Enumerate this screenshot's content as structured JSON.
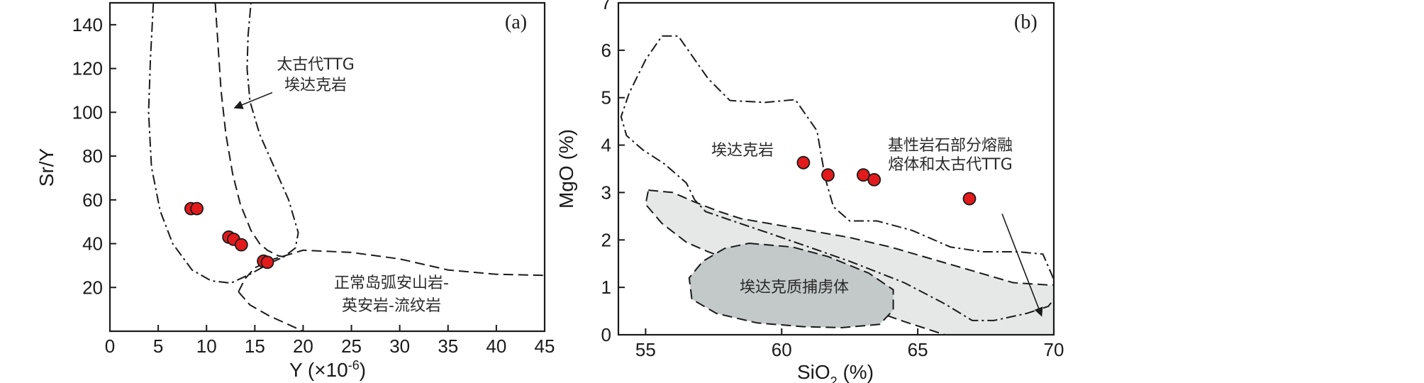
{
  "colors": {
    "point_fill": "#e31a1c",
    "point_stroke": "#1a1a1a",
    "light_field": "#e6e8e8",
    "dark_field": "#c3c8c8",
    "line": "#1a1a1a"
  },
  "chart_data": [
    {
      "type": "scatter",
      "panel_label": "(a)",
      "xlabel_prefix": "Y (",
      "xlabel_unit": "×10",
      "xlabel_exp": "-6",
      "xlabel_suffix": ")",
      "ylabel": "Sr/Y",
      "xlim": [
        0,
        45
      ],
      "ylim": [
        0,
        150
      ],
      "xticks": [
        0,
        5,
        10,
        15,
        20,
        25,
        30,
        35,
        40,
        45
      ],
      "yticks": [
        20,
        40,
        60,
        80,
        100,
        120,
        140
      ],
      "points": [
        {
          "x": 8.4,
          "y": 56
        },
        {
          "x": 9.0,
          "y": 56
        },
        {
          "x": 12.3,
          "y": 43
        },
        {
          "x": 12.8,
          "y": 42
        },
        {
          "x": 13.6,
          "y": 39.5
        },
        {
          "x": 15.9,
          "y": 32
        },
        {
          "x": 16.3,
          "y": 31.5
        }
      ],
      "regions": [
        {
          "name": "adakite",
          "label_lines": [
            "太古代TTG",
            "埃达克岩"
          ],
          "style": "dashdot",
          "points": [
            [
              4.5,
              150
            ],
            [
              4.2,
              125
            ],
            [
              4.0,
              100
            ],
            [
              4.3,
              75
            ],
            [
              5.2,
              55
            ],
            [
              6.5,
              40
            ],
            [
              8.5,
              28
            ],
            [
              10.5,
              23
            ],
            [
              12.5,
              22
            ],
            [
              14.5,
              26
            ],
            [
              16.5,
              31
            ],
            [
              18,
              34
            ],
            [
              19.2,
              38
            ],
            [
              19.5,
              45
            ],
            [
              18.5,
              60
            ],
            [
              17,
              75
            ],
            [
              15.5,
              90
            ],
            [
              14.5,
              105
            ],
            [
              14.2,
              120
            ],
            [
              14.3,
              135
            ],
            [
              14.6,
              150
            ]
          ]
        },
        {
          "name": "normal-arc",
          "label_lines": [
            "正常岛弧安山岩-",
            "英安岩-流纹岩"
          ],
          "style": "dash",
          "points": [
            [
              13.3,
              18
            ],
            [
              14.0,
              24
            ],
            [
              15.0,
              29
            ],
            [
              17,
              33
            ],
            [
              20,
              37
            ],
            [
              25,
              36
            ],
            [
              30,
              33
            ],
            [
              35,
              28
            ],
            [
              40,
              26
            ],
            [
              45,
              25.5
            ]
          ],
          "inner": [
            [
              13.3,
              18
            ],
            [
              14.5,
              12
            ],
            [
              16.5,
              7
            ],
            [
              18.5,
              3
            ],
            [
              20,
              0
            ]
          ]
        },
        {
          "name": "hook",
          "style": "dash",
          "points": [
            [
              10.9,
              150
            ],
            [
              11.2,
              130
            ],
            [
              11.5,
              110
            ],
            [
              12,
              90
            ],
            [
              12.7,
              72
            ],
            [
              13.5,
              58
            ],
            [
              14.6,
              46
            ],
            [
              15.5,
              40
            ],
            [
              16.3,
              37
            ],
            [
              17.4,
              34.5
            ],
            [
              18,
              34
            ]
          ]
        }
      ],
      "arrow": {
        "from": [
          16.8,
          109
        ],
        "to": [
          12.9,
          102
        ]
      }
    },
    {
      "type": "scatter",
      "panel_label": "(b)",
      "xlabel_prefix": "SiO",
      "xlabel_sub": "2",
      "xlabel_suffix": " (%)",
      "ylabel": "MgO (%)",
      "xlim": [
        54,
        70
      ],
      "ylim": [
        0,
        7
      ],
      "xticks": [
        55,
        60,
        65,
        70
      ],
      "yticks": [
        0,
        1,
        2,
        3,
        4,
        5,
        6,
        7
      ],
      "points": [
        {
          "x": 60.8,
          "y": 3.63
        },
        {
          "x": 61.7,
          "y": 3.37
        },
        {
          "x": 63.0,
          "y": 3.37
        },
        {
          "x": 63.4,
          "y": 3.27
        },
        {
          "x": 66.9,
          "y": 2.87
        }
      ],
      "regions": [
        {
          "name": "adakite-field",
          "label_lines": [
            "埃达克岩"
          ],
          "style": "dashdot",
          "points": [
            [
              55.6,
              6.3
            ],
            [
              56.2,
              6.3
            ],
            [
              57.3,
              5.4
            ],
            [
              58.1,
              4.94
            ],
            [
              59.4,
              4.9
            ],
            [
              60.5,
              4.96
            ],
            [
              61.3,
              4.3
            ],
            [
              61.6,
              3.3
            ],
            [
              61.9,
              2.7
            ],
            [
              62.5,
              2.4
            ],
            [
              63.5,
              2.4
            ],
            [
              64.8,
              2.2
            ],
            [
              66.2,
              1.85
            ],
            [
              67.4,
              1.75
            ],
            [
              68.7,
              1.75
            ],
            [
              69.6,
              1.7
            ],
            [
              70.2,
              0.9
            ],
            [
              69.8,
              0.6
            ],
            [
              69.0,
              0.45
            ],
            [
              67.8,
              0.3
            ],
            [
              67.0,
              0.3
            ],
            [
              66,
              0.65
            ],
            [
              64.5,
              1.1
            ],
            [
              62.5,
              1.55
            ],
            [
              61.0,
              1.85
            ],
            [
              59.5,
              2.15
            ],
            [
              58.2,
              2.4
            ],
            [
              57.2,
              2.6
            ],
            [
              56.8,
              2.85
            ],
            [
              56.5,
              3.2
            ],
            [
              55.7,
              3.6
            ],
            [
              54.9,
              3.9
            ],
            [
              54.3,
              4.2
            ],
            [
              54.1,
              4.6
            ],
            [
              54.4,
              5.1
            ],
            [
              55.0,
              5.8
            ],
            [
              55.6,
              6.3
            ]
          ]
        },
        {
          "name": "partial-melt-field",
          "label_lines": [
            "基性岩石部分熔融",
            "熔体和太古代TTG"
          ],
          "style": "dash",
          "points": [
            [
              55.1,
              3.05
            ],
            [
              56.0,
              3.0
            ],
            [
              56.8,
              2.8
            ],
            [
              57.7,
              2.6
            ],
            [
              58.5,
              2.45
            ],
            [
              59.5,
              2.35
            ],
            [
              61,
              2.2
            ],
            [
              62.5,
              2.05
            ],
            [
              64,
              1.85
            ],
            [
              65.5,
              1.6
            ],
            [
              67,
              1.35
            ],
            [
              68.5,
              1.1
            ],
            [
              69.8,
              1.05
            ],
            [
              70.5,
              1.05
            ],
            [
              70.5,
              0
            ],
            [
              66,
              0
            ],
            [
              64.5,
              0.28
            ],
            [
              63,
              0.58
            ],
            [
              61.5,
              0.88
            ],
            [
              60,
              1.2
            ],
            [
              58.5,
              1.5
            ],
            [
              57.3,
              1.75
            ],
            [
              56.5,
              1.95
            ],
            [
              55.6,
              2.35
            ],
            [
              55.0,
              2.75
            ],
            [
              55.1,
              3.05
            ]
          ]
        },
        {
          "name": "xenolith-field",
          "label_lines": [
            "埃达克质捕虏体"
          ],
          "style": "dash",
          "points": [
            [
              58.8,
              1.93
            ],
            [
              60.4,
              1.85
            ],
            [
              61.7,
              1.65
            ],
            [
              63.2,
              1.3
            ],
            [
              64.1,
              0.95
            ],
            [
              64.1,
              0.52
            ],
            [
              63.6,
              0.22
            ],
            [
              62.2,
              0.15
            ],
            [
              60.8,
              0.17
            ],
            [
              59.1,
              0.25
            ],
            [
              57.6,
              0.45
            ],
            [
              56.7,
              0.75
            ],
            [
              56.6,
              1.2
            ],
            [
              57.1,
              1.55
            ],
            [
              57.9,
              1.82
            ],
            [
              58.8,
              1.93
            ]
          ]
        }
      ],
      "arrow": {
        "from": [
          68.1,
          2.55
        ],
        "to": [
          69.55,
          0.4
        ]
      }
    }
  ]
}
